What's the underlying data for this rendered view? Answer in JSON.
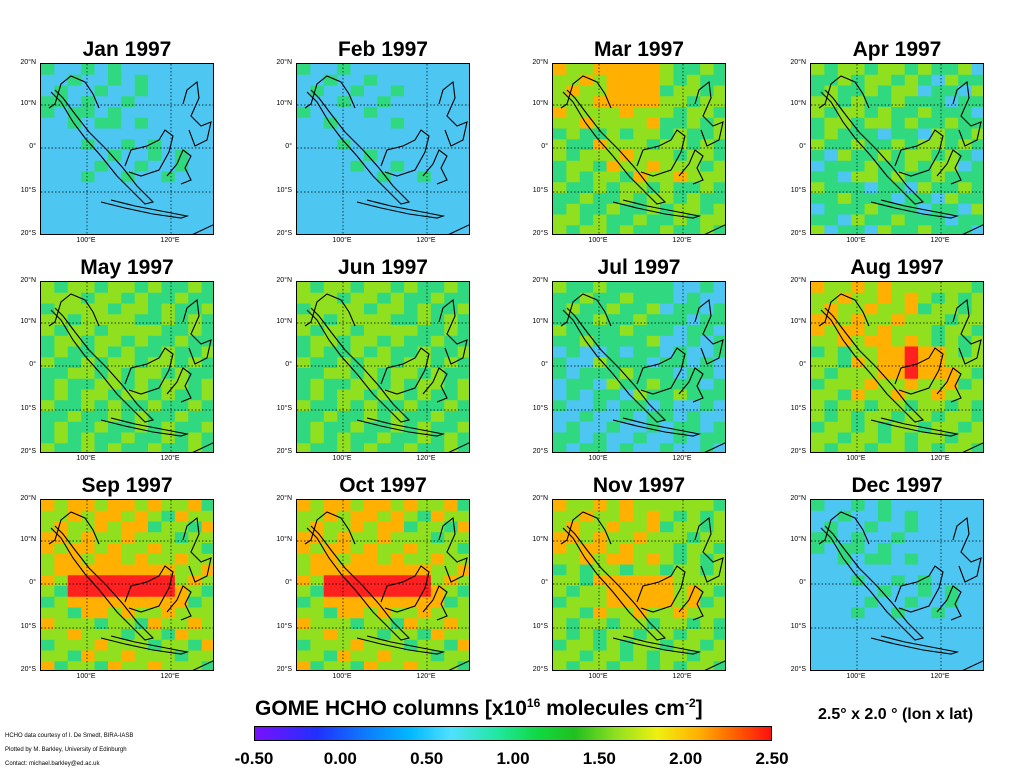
{
  "colors": {
    "background_low": "#4dc6f2",
    "moderate": "#30d880",
    "elevated": "#90e020",
    "high": "#ffb000",
    "very_high": "#ff2020",
    "coastline": "#000000",
    "gridline": "#000000"
  },
  "latitude_labels": [
    "20°N",
    "10°N",
    "0°",
    "10°S",
    "20°S"
  ],
  "longitude_labels": [
    "100°E",
    "120°E"
  ],
  "panels": [
    {
      "title": "Jan 1997",
      "intensity": 0.1,
      "hotspot": "none"
    },
    {
      "title": "Feb 1997",
      "intensity": 0.05,
      "hotspot": "none"
    },
    {
      "title": "Mar 1997",
      "intensity": 0.45,
      "hotspot": "north"
    },
    {
      "title": "Apr 1997",
      "intensity": 0.35,
      "hotspot": "none"
    },
    {
      "title": "May 1997",
      "intensity": 0.4,
      "hotspot": "none"
    },
    {
      "title": "Jun 1997",
      "intensity": 0.4,
      "hotspot": "none"
    },
    {
      "title": "Jul 1997",
      "intensity": 0.25,
      "hotspot": "none"
    },
    {
      "title": "Aug 1997",
      "intensity": 0.5,
      "hotspot": "borneo"
    },
    {
      "title": "Sep 1997",
      "intensity": 0.55,
      "hotspot": "sumatra-borneo-strong"
    },
    {
      "title": "Oct 1997",
      "intensity": 0.55,
      "hotspot": "sumatra-borneo-strong"
    },
    {
      "title": "Nov 1997",
      "intensity": 0.5,
      "hotspot": "sumatra-borneo-weak"
    },
    {
      "title": "Dec 1997",
      "intensity": 0.1,
      "hotspot": "none"
    }
  ],
  "colorbar": {
    "title_prefix": "GOME HCHO columns [x10",
    "title_exp1": "16",
    "title_mid": " molecules cm",
    "title_exp2": "-2",
    "title_suffix": "]",
    "ticks": [
      "-0.50",
      "0.00",
      "0.50",
      "1.00",
      "1.50",
      "2.00",
      "2.50"
    ]
  },
  "resolution_label": "2.5° x 2.0 ° (lon x lat)",
  "credits": [
    "HCHO data courtesy of I. De Smedt, BIRA-IASB",
    "Plotted by M. Barkley, University of Edinburgh",
    "Contact: michael.barkley@ed.ac.uk"
  ]
}
